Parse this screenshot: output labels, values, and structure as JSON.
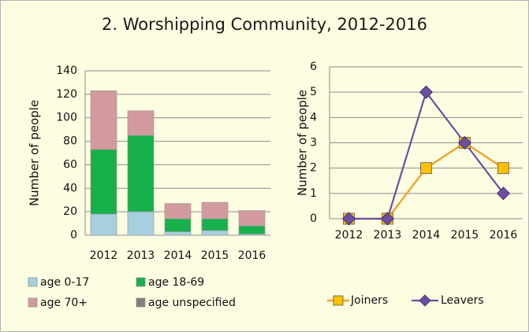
{
  "title": "2. Worshipping Community, 2012-2016",
  "colors": {
    "background": "#fdfde2",
    "age_0_17": "#a6cfe0",
    "age_18_69": "#17b04a",
    "age_70_plus": "#d39a9e",
    "age_unspecified": "#7f7f7f",
    "joiners": "#f59a1f",
    "joiners_marker": "#ffc000",
    "leavers": "#6c4ea0"
  },
  "chart_data": [
    {
      "type": "bar",
      "stacked": true,
      "categories": [
        "2012",
        "2013",
        "2014",
        "2015",
        "2016"
      ],
      "series": [
        {
          "name": "age 0-17",
          "values": [
            18,
            20,
            3,
            4,
            1
          ]
        },
        {
          "name": "age 18-69",
          "values": [
            55,
            65,
            11,
            10,
            7
          ]
        },
        {
          "name": "age 70+",
          "values": [
            50,
            21,
            13,
            14,
            13
          ]
        },
        {
          "name": "age unspecified",
          "values": [
            0,
            0,
            0,
            0,
            0
          ]
        }
      ],
      "ylabel": "Number of people",
      "ylim": [
        0,
        140
      ],
      "yticks": [
        "0",
        "20",
        "40",
        "60",
        "80",
        "100",
        "120",
        "140"
      ],
      "grid": true,
      "legend_position": "bottom"
    },
    {
      "type": "line",
      "x": [
        "2012",
        "2013",
        "2014",
        "2015",
        "2016"
      ],
      "series": [
        {
          "name": "Joiners",
          "values": [
            0,
            0,
            2,
            3,
            2
          ],
          "marker": "square"
        },
        {
          "name": "Leavers",
          "values": [
            0,
            0,
            5,
            3,
            1
          ],
          "marker": "diamond"
        }
      ],
      "ylabel": "Number of people",
      "ylim": [
        0,
        6
      ],
      "yticks": [
        "0",
        "1",
        "2",
        "3",
        "4",
        "5",
        "6"
      ],
      "grid": true,
      "legend_position": "bottom"
    }
  ]
}
